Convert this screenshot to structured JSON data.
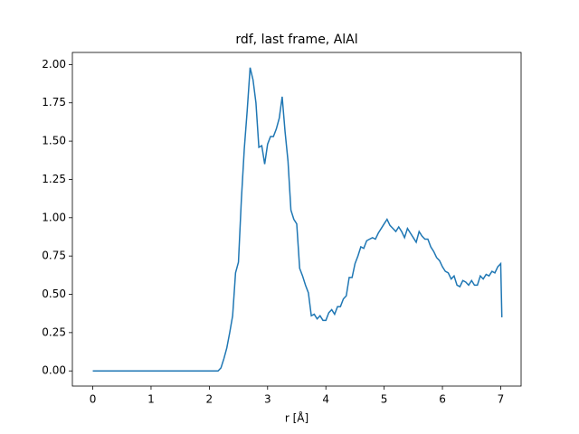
{
  "chart_data": {
    "type": "line",
    "title": "rdf, last frame, AlAl",
    "x_label": "r [Å]",
    "x": [
      0,
      2.15,
      2.2,
      2.25,
      2.3,
      2.35,
      2.4,
      2.45,
      2.5,
      2.55,
      2.6,
      2.65,
      2.7,
      2.75,
      2.8,
      2.85,
      2.9,
      2.95,
      3.0,
      3.05,
      3.1,
      3.15,
      3.2,
      3.25,
      3.3,
      3.35,
      3.4,
      3.45,
      3.5,
      3.55,
      3.6,
      3.65,
      3.7,
      3.75,
      3.8,
      3.85,
      3.9,
      3.95,
      4.0,
      4.05,
      4.1,
      4.15,
      4.2,
      4.25,
      4.3,
      4.35,
      4.4,
      4.45,
      4.5,
      4.55,
      4.6,
      4.65,
      4.7,
      4.75,
      4.8,
      4.85,
      4.9,
      4.95,
      5.0,
      5.05,
      5.1,
      5.15,
      5.2,
      5.25,
      5.3,
      5.35,
      5.4,
      5.45,
      5.5,
      5.55,
      5.6,
      5.65,
      5.7,
      5.75,
      5.8,
      5.85,
      5.9,
      5.95,
      6.0,
      6.05,
      6.1,
      6.15,
      6.2,
      6.25,
      6.3,
      6.35,
      6.4,
      6.45,
      6.5,
      6.55,
      6.6,
      6.65,
      6.7,
      6.75,
      6.8,
      6.85,
      6.9,
      6.95,
      7.0,
      7.02
    ],
    "series": [
      {
        "color": "#1f77b4",
        "values": [
          0,
          0,
          0.02,
          0.08,
          0.15,
          0.25,
          0.36,
          0.64,
          0.71,
          1.12,
          1.45,
          1.7,
          1.98,
          1.9,
          1.75,
          1.46,
          1.47,
          1.35,
          1.48,
          1.53,
          1.53,
          1.58,
          1.65,
          1.79,
          1.56,
          1.37,
          1.05,
          0.99,
          0.96,
          0.67,
          0.62,
          0.56,
          0.51,
          0.36,
          0.37,
          0.34,
          0.36,
          0.33,
          0.33,
          0.38,
          0.4,
          0.37,
          0.42,
          0.42,
          0.47,
          0.49,
          0.61,
          0.61,
          0.7,
          0.75,
          0.81,
          0.8,
          0.85,
          0.86,
          0.87,
          0.86,
          0.9,
          0.93,
          0.96,
          0.99,
          0.95,
          0.93,
          0.91,
          0.94,
          0.91,
          0.87,
          0.93,
          0.9,
          0.87,
          0.84,
          0.91,
          0.88,
          0.86,
          0.86,
          0.81,
          0.78,
          0.74,
          0.72,
          0.68,
          0.65,
          0.64,
          0.6,
          0.62,
          0.56,
          0.55,
          0.59,
          0.58,
          0.56,
          0.59,
          0.56,
          0.56,
          0.62,
          0.6,
          0.63,
          0.62,
          0.65,
          0.64,
          0.68,
          0.7,
          0.35
        ]
      }
    ],
    "xlim": [
      -0.35,
      7.35
    ],
    "ylim": [
      -0.099,
      2.079
    ],
    "xticks": [
      0,
      1,
      2,
      3,
      4,
      5,
      6,
      7
    ],
    "yticks": [
      {
        "value": 0,
        "label": "0.00"
      },
      {
        "value": 0.25,
        "label": "0.25"
      },
      {
        "value": 0.5,
        "label": "0.50"
      },
      {
        "value": 0.75,
        "label": "0.75"
      },
      {
        "value": 1,
        "label": "1.00"
      },
      {
        "value": 1.25,
        "label": "1.25"
      },
      {
        "value": 1.5,
        "label": "1.50"
      },
      {
        "value": 1.75,
        "label": "1.75"
      },
      {
        "value": 2,
        "label": "2.00"
      }
    ]
  }
}
